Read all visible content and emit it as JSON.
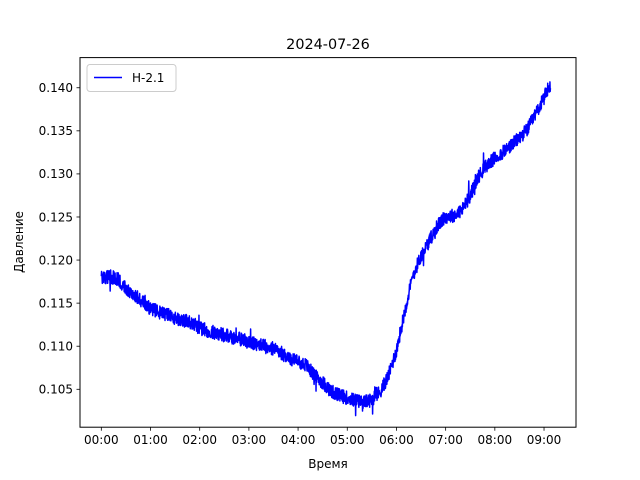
{
  "chart_data": {
    "type": "line",
    "title": "2024-07-26",
    "xlabel": "Время",
    "ylabel": "Давление",
    "x_unit": "time (HH:MM)",
    "xlim": [
      "-00:26",
      "09:39"
    ],
    "ylim": [
      0.1006,
      0.1435
    ],
    "xticks": [
      "00:00",
      "01:00",
      "02:00",
      "03:00",
      "04:00",
      "05:00",
      "06:00",
      "07:00",
      "08:00",
      "09:00"
    ],
    "yticks": [
      "0.105",
      "0.110",
      "0.115",
      "0.120",
      "0.125",
      "0.130",
      "0.135",
      "0.140"
    ],
    "grid": false,
    "legend_position": "top-left",
    "series": [
      {
        "name": "Н-2.1",
        "color": "#0000ff",
        "points": [
          [
            "00:00",
            0.118
          ],
          [
            "00:10",
            0.1181
          ],
          [
            "00:20",
            0.1178
          ],
          [
            "00:30",
            0.1168
          ],
          [
            "00:40",
            0.116
          ],
          [
            "00:50",
            0.1152
          ],
          [
            "01:00",
            0.1143
          ],
          [
            "01:10",
            0.114
          ],
          [
            "01:20",
            0.1137
          ],
          [
            "01:30",
            0.1133
          ],
          [
            "01:40",
            0.113
          ],
          [
            "01:50",
            0.1128
          ],
          [
            "02:00",
            0.1121
          ],
          [
            "02:10",
            0.1118
          ],
          [
            "02:20",
            0.1115
          ],
          [
            "02:30",
            0.1113
          ],
          [
            "02:40",
            0.111
          ],
          [
            "02:50",
            0.1108
          ],
          [
            "03:00",
            0.1105
          ],
          [
            "03:10",
            0.1102
          ],
          [
            "03:20",
            0.11
          ],
          [
            "03:30",
            0.1097
          ],
          [
            "03:40",
            0.1092
          ],
          [
            "03:50",
            0.1085
          ],
          [
            "04:00",
            0.1083
          ],
          [
            "04:10",
            0.1078
          ],
          [
            "04:20",
            0.1066
          ],
          [
            "04:30",
            0.1058
          ],
          [
            "04:40",
            0.1048
          ],
          [
            "04:50",
            0.1043
          ],
          [
            "05:00",
            0.104
          ],
          [
            "05:10",
            0.1037
          ],
          [
            "05:20",
            0.1035
          ],
          [
            "05:30",
            0.1038
          ],
          [
            "05:40",
            0.1047
          ],
          [
            "05:50",
            0.1065
          ],
          [
            "06:00",
            0.1095
          ],
          [
            "06:10",
            0.114
          ],
          [
            "06:20",
            0.1182
          ],
          [
            "06:30",
            0.1205
          ],
          [
            "06:40",
            0.1222
          ],
          [
            "06:50",
            0.124
          ],
          [
            "07:00",
            0.125
          ],
          [
            "07:10",
            0.1252
          ],
          [
            "07:20",
            0.1258
          ],
          [
            "07:30",
            0.1275
          ],
          [
            "07:40",
            0.1297
          ],
          [
            "07:50",
            0.131
          ],
          [
            "08:00",
            0.1318
          ],
          [
            "08:10",
            0.1325
          ],
          [
            "08:20",
            0.1333
          ],
          [
            "08:30",
            0.1342
          ],
          [
            "08:40",
            0.1352
          ],
          [
            "08:50",
            0.137
          ],
          [
            "09:00",
            0.1388
          ],
          [
            "09:05",
            0.14
          ],
          [
            "09:08",
            0.14
          ]
        ]
      }
    ]
  }
}
